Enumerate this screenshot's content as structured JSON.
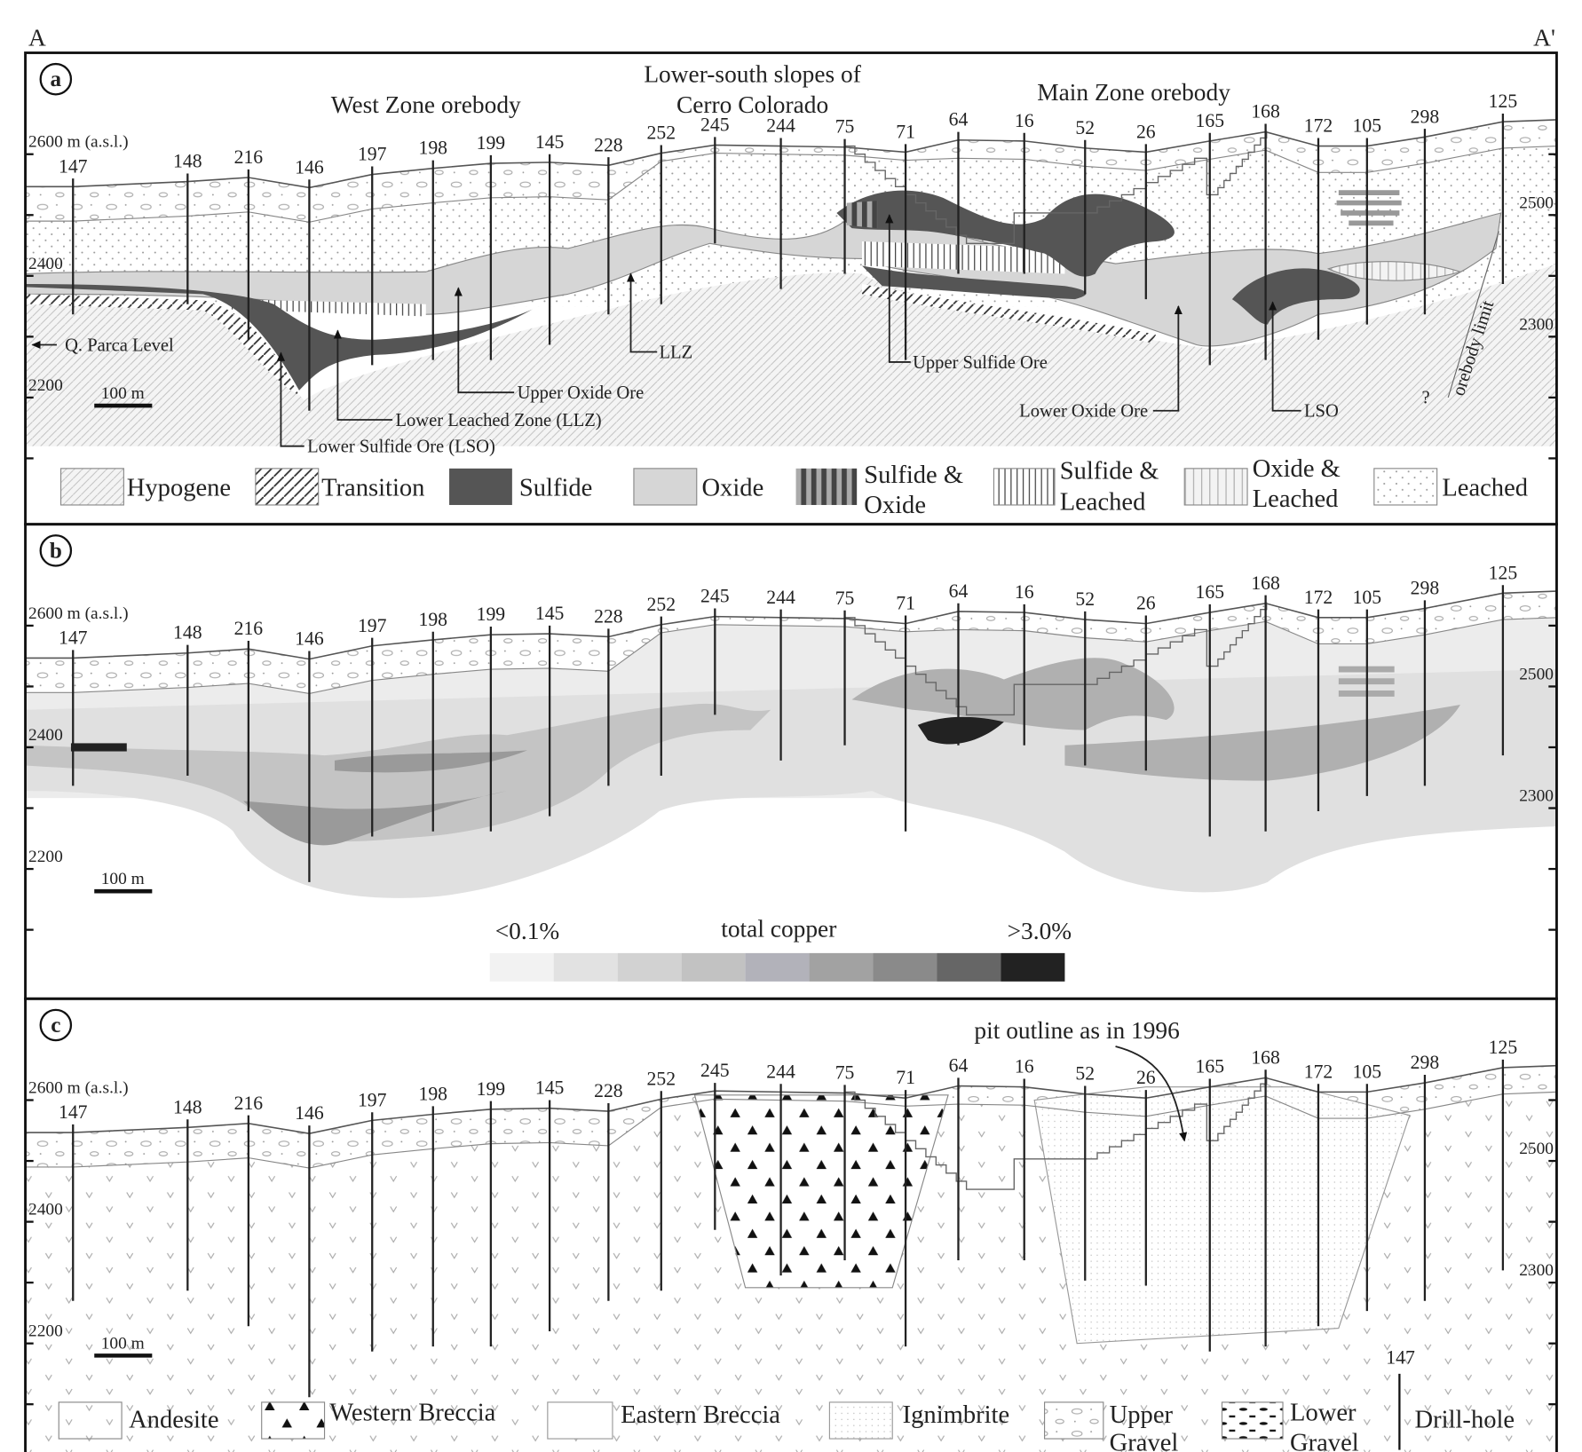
{
  "section": {
    "start": "A",
    "end": "A'"
  },
  "drill_holes": [
    "147",
    "148",
    "216",
    "146",
    "197",
    "198",
    "199",
    "145",
    "228",
    "252",
    "245",
    "244",
    "75",
    "71",
    "64",
    "16",
    "52",
    "26",
    "165",
    "168",
    "172",
    "105",
    "298",
    "125"
  ],
  "panels": [
    {
      "letter": "a",
      "elevations": [
        "2600 m (a.s.l.)",
        "2400",
        "2200",
        "2500",
        "2300"
      ],
      "scale_bar": "100 m",
      "titles": [
        "West Zone orebody",
        "Lower-south slopes of",
        "Cerro Colorado",
        "Main Zone orebody"
      ],
      "annotations": [
        "Q. Parca Level",
        "LLZ",
        "Upper Oxide Ore",
        "Lower Leached Zone (LLZ)",
        "Lower Sulfide Ore (LSO)",
        "Upper Sulfide Ore",
        "Lower Oxide Ore",
        "LSO",
        "orebody limit",
        "?"
      ],
      "legend": [
        [
          "Hypogene"
        ],
        [
          "Transition"
        ],
        [
          "Sulfide"
        ],
        [
          "Oxide"
        ],
        [
          "Sulfide &",
          "Oxide"
        ],
        [
          "Sulfide &",
          "Leached"
        ],
        [
          "Oxide &",
          "Leached"
        ],
        [
          "Leached"
        ]
      ]
    },
    {
      "letter": "b",
      "elevations": [
        "2600 m (a.s.l.)",
        "2400",
        "2200",
        "2500",
        "2300"
      ],
      "scale_bar": "100 m",
      "color_scale": {
        "low": "<0.1%",
        "title": "total copper",
        "high": ">3.0%"
      }
    },
    {
      "letter": "c",
      "elevations": [
        "2600 m (a.s.l.)",
        "2400",
        "2200",
        "2500",
        "2300"
      ],
      "scale_bar": "100 m",
      "annotation": "pit outline as in 1996",
      "legend": [
        [
          "Andesite"
        ],
        [
          "Western Breccia"
        ],
        [
          "Eastern Breccia"
        ],
        [
          "Ignimbrite"
        ],
        [
          "Upper",
          "Gravel"
        ],
        [
          "Lower",
          "Gravel"
        ]
      ],
      "drill_hole_legend": {
        "sample": "147",
        "label": "Drill-hole"
      }
    }
  ]
}
